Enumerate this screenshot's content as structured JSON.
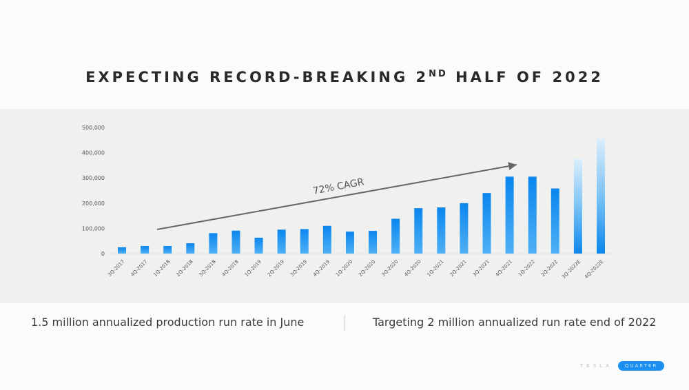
{
  "title_main": "EXPECTING RECORD-BREAKING 2",
  "title_sup": "ND",
  "title_tail": " HALF OF 2022",
  "footer": {
    "left": "1.5 million annualized production run rate in June",
    "right": "Targeting 2 million annualized run rate end of 2022"
  },
  "logo": {
    "word": "TESLA",
    "badge": "QUARTER"
  },
  "chart_data": {
    "type": "bar",
    "title": "EXPECTING RECORD-BREAKING 2ND HALF OF 2022",
    "xlabel": "",
    "ylabel": "",
    "ylim": [
      0,
      500000
    ],
    "yticks": [
      "0",
      "100,000",
      "200,000",
      "300,000",
      "400,000",
      "500,000"
    ],
    "grid": false,
    "categories": [
      "3Q-2017",
      "4Q-2017",
      "1Q-2018",
      "2Q-2018",
      "3Q-2018",
      "4Q-2018",
      "1Q-2019",
      "2Q-2019",
      "3Q-2019",
      "4Q-2019",
      "1Q-2020",
      "2Q-2020",
      "3Q-2020",
      "4Q-2020",
      "1Q-2021",
      "2Q-2021",
      "3Q-2021",
      "4Q-2021",
      "1Q-2022",
      "2Q-2022",
      "3Q-2022E",
      "4Q-2022E"
    ],
    "values": [
      25000,
      30000,
      30000,
      41000,
      81000,
      91000,
      63000,
      95000,
      97000,
      110000,
      87000,
      90000,
      138000,
      180000,
      183000,
      200000,
      240000,
      305000,
      305000,
      258000,
      375000,
      455000
    ],
    "estimated": [
      false,
      false,
      false,
      false,
      false,
      false,
      false,
      false,
      false,
      false,
      false,
      false,
      false,
      false,
      false,
      false,
      false,
      false,
      false,
      false,
      true,
      true
    ],
    "annotation": "72% CAGR",
    "bar_color": "#1a8ff0"
  }
}
